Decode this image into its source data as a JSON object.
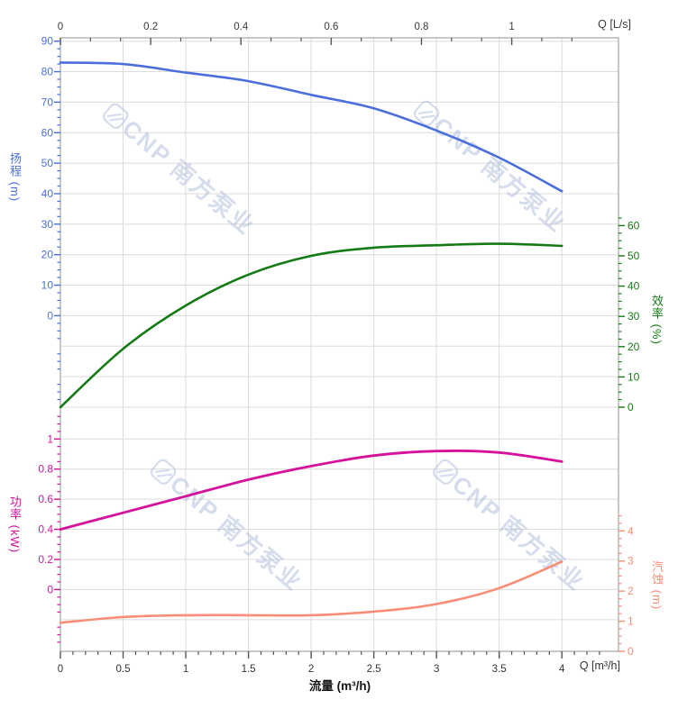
{
  "watermark": {
    "text": "CNP 南方泵业"
  },
  "colors": {
    "head": "#4a6fdc",
    "efficiency": "#147a14",
    "power": "#d4129b",
    "npsh": "#f98d77",
    "grid": "#dcdcdc",
    "plot_border": "#ababab",
    "top_axis_text": "#3a3a3a",
    "bottom_axis_text": "#333333",
    "watermark_color": "#9cb0d2"
  },
  "axes": {
    "top": {
      "unit_label": "Q [L/s]",
      "tick_values": [
        0,
        0.2,
        0.4,
        0.6,
        0.8,
        1
      ],
      "tick_labels": [
        "0",
        "0.2",
        "0.4",
        "0.6",
        "0.8",
        "1"
      ]
    },
    "bottom": {
      "unit_label": "Q [m³/h]",
      "axis_title": "流量 (m³/h)",
      "tick_values": [
        0,
        0.5,
        1,
        1.5,
        2,
        2.5,
        3,
        3.5,
        4
      ],
      "tick_labels": [
        "0",
        "0.5",
        "1",
        "1.5",
        "2",
        "2.5",
        "3",
        "3.5",
        "4"
      ]
    },
    "head": {
      "title": "扬程 (m)",
      "tick_values": [
        0,
        10,
        20,
        30,
        40,
        50,
        60,
        70,
        80,
        90
      ],
      "tick_labels": [
        "0",
        "10",
        "20",
        "30",
        "40",
        "50",
        "60",
        "70",
        "80",
        "90"
      ]
    },
    "efficiency": {
      "title": "效率 (%)",
      "tick_values": [
        0,
        10,
        20,
        30,
        40,
        50,
        60
      ],
      "tick_labels": [
        "0",
        "10",
        "20",
        "30",
        "40",
        "50",
        "60"
      ]
    },
    "power": {
      "title": "功率 (kW)",
      "tick_values": [
        0,
        0.2,
        0.4,
        0.6,
        0.8,
        1
      ],
      "tick_labels": [
        "0",
        "0.2",
        "0.4",
        "0.6",
        "0.8",
        "1"
      ]
    },
    "npsh": {
      "title": "汽蚀 (m)",
      "tick_values": [
        0,
        1,
        2,
        3,
        4
      ],
      "tick_labels": [
        "0",
        "1",
        "2",
        "3",
        "4"
      ]
    }
  },
  "chart_data": {
    "type": "line",
    "title": "",
    "xlabel": "流量 (m³/h)",
    "x_top_unit": "Q [L/s]",
    "x": [
      0,
      0.5,
      1,
      1.5,
      2,
      2.5,
      3,
      3.5,
      4
    ],
    "xlim": [
      0,
      4.45
    ],
    "grid": true,
    "series": [
      {
        "name": "扬程",
        "unit": "m",
        "axis": "head",
        "color": "#4a6fdc",
        "ylim": [
          0,
          90
        ],
        "values": [
          83,
          82.5,
          79.7,
          76.9,
          72.4,
          68,
          60.7,
          51.8,
          40.8
        ]
      },
      {
        "name": "效率",
        "unit": "%",
        "axis": "efficiency",
        "color": "#147a14",
        "ylim": [
          0,
          60
        ],
        "values": [
          0,
          19.3,
          33.6,
          43.8,
          50,
          52.7,
          53.5,
          54,
          53.3
        ]
      },
      {
        "name": "功率",
        "unit": "kW",
        "axis": "power",
        "color": "#d4129b",
        "ylim": [
          0,
          1
        ],
        "values": [
          0.4,
          0.51,
          0.62,
          0.73,
          0.82,
          0.89,
          0.92,
          0.91,
          0.85
        ]
      },
      {
        "name": "汽蚀",
        "unit": "m",
        "axis": "npsh",
        "color": "#f98d77",
        "ylim": [
          0,
          4
        ],
        "values": [
          0.95,
          1.14,
          1.2,
          1.2,
          1.2,
          1.32,
          1.57,
          2.1,
          2.98
        ]
      }
    ]
  }
}
